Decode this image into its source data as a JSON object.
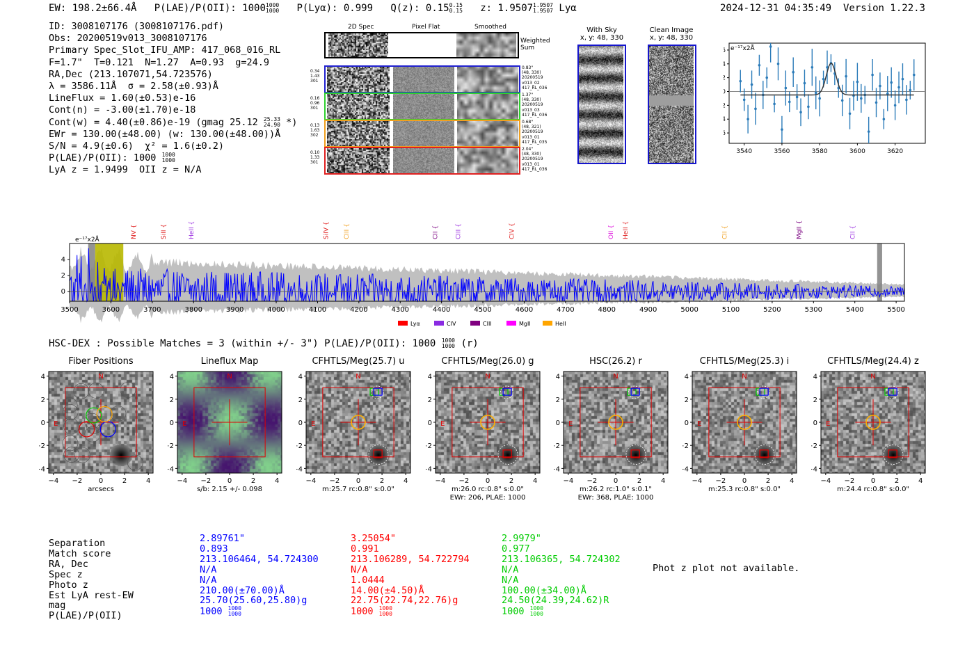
{
  "header": {
    "ew": "EW: 198.2±66.4Å",
    "plae_label": "P(LAE)/P(OII): 1000",
    "plae_hi": "1000",
    "plae_lo": "1000",
    "plya": "P(Lyα): 0.999",
    "qz_label": "Q(z): 0.15",
    "qz_hi": "0.15",
    "qz_lo": "0.15",
    "z_label": "z: 1.9507",
    "z_hi": "1.9507",
    "z_lo": "1.9507",
    "z_line": "Lyα",
    "timestamp": "2024-12-31 04:35:49",
    "version": "Version 1.22.3"
  },
  "info": {
    "id": "ID: 3008107176 (3008107176.pdf)",
    "obs": "Obs: 20200519v013_3008107176",
    "spec": "Primary Spec_Slot_IFU_AMP: 417_068_016_RL",
    "params": "F=1.7\"  T=0.121  N=1.27  A=0.93  g=24.9",
    "radec": "RA,Dec (213.107071,54.723576)",
    "lambda": "λ = 3586.11Å  σ = 2.58(±0.93)Å",
    "lineflux": "LineFlux = 1.60(±0.53)e-16",
    "contn": "Cont(n) = -3.00(±1.70)e-18",
    "contw": "Cont(w) = 4.40(±0.86)e-19 (gmag 25.12",
    "contw_hi": "25.33",
    "contw_lo": "24.90",
    "contw_end": "*)",
    "ewr": "EWr = 130.00(±48.00) (w: 130.00(±48.00))Å",
    "sn": "S/N = 4.9(±0.6)  χ² = 1.6(±0.2)",
    "plae": "P(LAE)/P(OII): 1000",
    "plae_hi": "1000",
    "plae_lo": "1000",
    "lyaz": "LyA z = 1.9499  OII z = N/A"
  },
  "spec2d": {
    "col_labels": [
      "2D Spec",
      "Pixel Flat",
      "Smoothed"
    ],
    "weighted": "Weighted\nSum",
    "rows": [
      {
        "left": "0.34\n1.43\n301",
        "right": "0.83\"\n(48, 330)\n20200519\nv013_02\n417_RL_036",
        "color": "#2020d0"
      },
      {
        "left": "0.16\n0.96\n301",
        "right": "1.37\"\n(48, 330)\n20200519\nv013_03\n417_RL_036",
        "color": "#30d030"
      },
      {
        "left": "0.13\n1.63\n302",
        "right": "0.68\"\n(48, 321)\n20200519\nv013_01\n417_RL_035",
        "color": "#f0a020"
      },
      {
        "left": "0.10\n1.33\n301",
        "right": "2.04\"\n(48, 330)\n20200519\nv013_01\n417_RL_036",
        "color": "#e02020"
      }
    ]
  },
  "cutouts_top": {
    "with_sky": "With Sky",
    "with_sky_xy": "x, y: 48, 330",
    "clean": "Clean Image",
    "clean_xy": "x, y: 48, 330"
  },
  "zoom_chart": {
    "unit": "e⁻¹⁷x2Å"
  },
  "full_chart": {
    "unit": "e⁻¹⁷x2Å",
    "lines": [
      {
        "name": "NV",
        "x": 3655,
        "color": "#e02020"
      },
      {
        "name": "SiII",
        "x": 3727,
        "color": "#e02020"
      },
      {
        "name": "HeII",
        "x": 3795,
        "color": "#9a30e0"
      },
      {
        "name": "SiIV",
        "x": 4120,
        "color": "#e02020"
      },
      {
        "name": "CIII",
        "x": 4170,
        "color": "#f0a020"
      },
      {
        "name": "CII",
        "x": 4385,
        "color": "#7a0080"
      },
      {
        "name": "CIII",
        "x": 4440,
        "color": "#9a30e0"
      },
      {
        "name": "CIV",
        "x": 4570,
        "color": "#e02020"
      },
      {
        "name": "OII",
        "x": 4810,
        "color": "#e020e0"
      },
      {
        "name": "HeII",
        "x": 4845,
        "color": "#e02020"
      },
      {
        "name": "CII",
        "x": 5085,
        "color": "#f0a020"
      },
      {
        "name": "MgII",
        "x": 5265,
        "color": "#7a0080"
      },
      {
        "name": "CII",
        "x": 5395,
        "color": "#9a30e0"
      }
    ],
    "legend": [
      {
        "name": "Lyα",
        "color": "#ff0000"
      },
      {
        "name": "CIV",
        "color": "#8a2be2"
      },
      {
        "name": "CIII",
        "color": "#800080"
      },
      {
        "name": "MgII",
        "color": "#ff00ff"
      },
      {
        "name": "HeII",
        "color": "#ffa500"
      }
    ]
  },
  "chart_data": [
    {
      "type": "scatter",
      "title": "",
      "ylabel": "e⁻¹⁷x2Å",
      "xlim": [
        3532,
        3636
      ],
      "ylim": [
        -7.5,
        7
      ],
      "xticks": [
        "3540",
        "3560",
        "3580",
        "3600",
        "3620"
      ],
      "yticks": [
        "6",
        "4",
        "2",
        "0",
        "-2",
        "-4",
        "-6"
      ],
      "x": [
        3538,
        3540,
        3542,
        3544,
        3546,
        3548,
        3550,
        3552,
        3554,
        3556,
        3558,
        3560,
        3562,
        3564,
        3566,
        3568,
        3570,
        3572,
        3574,
        3576,
        3578,
        3580,
        3582,
        3584,
        3586,
        3588,
        3590,
        3592,
        3594,
        3596,
        3598,
        3600,
        3602,
        3604,
        3606,
        3608,
        3610,
        3612,
        3614,
        3616,
        3618,
        3620,
        3622,
        3624,
        3626,
        3628,
        3630
      ],
      "values": [
        1.5,
        -1.2,
        -4.0,
        1.0,
        -2.5,
        3.8,
        -0.5,
        2.0,
        6.5,
        -1.8,
        4.0,
        -5.5,
        0.5,
        -1.5,
        2.8,
        -0.8,
        -3.0,
        1.2,
        -2.2,
        3.5,
        -0.2,
        -1.0,
        1.8,
        3.5,
        4.1,
        2.6,
        0.5,
        -1.3,
        2.2,
        -3.2,
        -0.6,
        1.4,
        -1.0,
        -0.5,
        -5.8,
        2.4,
        -1.6,
        0.8,
        -4.0,
        -0.3,
        1.3,
        -2.0,
        0.6,
        1.8,
        -1.2,
        0.2,
        2.4
      ],
      "fit": "gaussian peak 4.1 at 3586.1, sigma 2.6, baseline -0.5"
    },
    {
      "type": "line",
      "xlim": [
        3500,
        5520
      ],
      "ylim": [
        -1.2,
        6
      ],
      "xticks": [
        "3500",
        "3600",
        "3700",
        "3800",
        "3900",
        "4000",
        "4100",
        "4200",
        "4300",
        "4400",
        "4500",
        "4600",
        "4700",
        "4800",
        "4900",
        "5000",
        "5100",
        "5200",
        "5300",
        "5400",
        "5500"
      ],
      "yticks": [
        "4",
        "2",
        "0"
      ],
      "series": [
        {
          "name": "flux",
          "color": "#0000ff",
          "seed": 1234,
          "start_amp": 2.2,
          "end_amp": 0.45
        },
        {
          "name": "error",
          "color": "#c0c0c0",
          "start": 4.0,
          "end": 0.9
        }
      ],
      "highlights": [
        {
          "from": 3545,
          "to": 3562,
          "color": "#808080"
        },
        {
          "from": 3562,
          "to": 3630,
          "color": "#b8b800"
        },
        {
          "from": 5454,
          "to": 5466,
          "color": "#808080"
        }
      ]
    }
  ],
  "matches_title": "HSC-DEX : Possible Matches = 3 (within +/- 3\")  P(LAE)/P(OII): 1000",
  "matches_hi": "1000",
  "matches_lo": "1000",
  "matches_band": "(r)",
  "panels": [
    {
      "title": "Fiber Positions",
      "caption": "arcsecs",
      "caption2": ""
    },
    {
      "title": "Lineflux Map",
      "caption": "s/b: 2.15 +/- 0.098",
      "caption2": ""
    },
    {
      "title": "CFHTLS/Meg(25.7) u",
      "caption": "m:25.7 rc:0.8\"  s:0.0\"",
      "caption2": ""
    },
    {
      "title": "CFHTLS/Meg(26.0) g",
      "caption": "m:26.0 rc:0.8\"  s:0.0\"",
      "caption2": "EWr: 206, PLAE: 1000"
    },
    {
      "title": "HSC(26.2) r",
      "caption": "m:26.2 rc:1.0\"  s:0.1\"",
      "caption2": "EWr: 368, PLAE: 1000"
    },
    {
      "title": "CFHTLS/Meg(25.3) i",
      "caption": "m:25.3 rc:0.8\"  s:0.0\"",
      "caption2": ""
    },
    {
      "title": "CFHTLS/Meg(24.4) z",
      "caption": "m:24.4 rc:0.8\"  s:0.0\"",
      "caption2": ""
    }
  ],
  "axis_ticks": [
    "4",
    "2",
    "0",
    "−2",
    "−4"
  ],
  "compass_n": "N",
  "compass_e": "E",
  "table": {
    "labels": [
      "Separation",
      "Match score",
      "RA, Dec",
      "Spec z",
      "Photo z",
      "Est LyA rest-EW",
      "mag",
      "P(LAE)/P(OII)"
    ],
    "cols": [
      {
        "color": "#0000ff",
        "values": [
          "2.89761\"",
          "0.893",
          "213.106464, 54.724300",
          "N/A",
          "N/A",
          "210.00(±70.00)Å",
          "25.70(25.60,25.80)g",
          "1000"
        ],
        "plae_hi": "1000",
        "plae_lo": "1000"
      },
      {
        "color": "#ff0000",
        "values": [
          "3.25054\"",
          "0.991",
          "213.106289, 54.722794",
          "N/A",
          "1.0444",
          "14.00(±4.50)Å",
          "22.75(22.74,22.76)g",
          "1000"
        ],
        "plae_hi": "1000",
        "plae_lo": "1000"
      },
      {
        "color": "#00cc00",
        "values": [
          "2.9979\"",
          "0.977",
          "213.106365, 54.724302",
          "N/A",
          "N/A",
          "100.00(±34.00)Å",
          "24.50(24.39,24.62)R",
          "1000"
        ],
        "plae_hi": "1000",
        "plae_lo": "1000"
      }
    ],
    "photz": "Phot z plot not available."
  }
}
